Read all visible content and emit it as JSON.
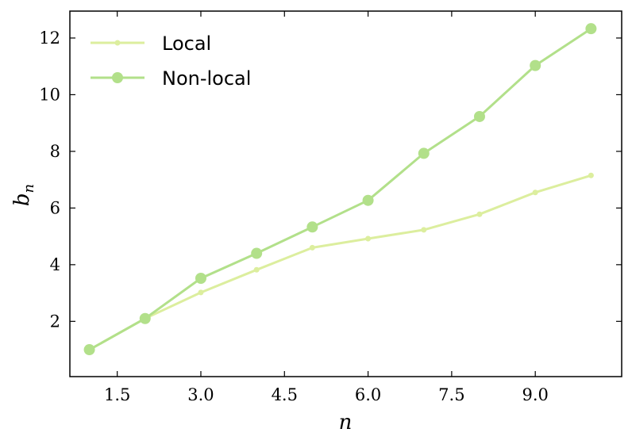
{
  "chart_data": {
    "type": "line",
    "xlabel": "n",
    "ylabel": "b",
    "ylabel_sub": "n",
    "xlim": [
      0.65,
      10.55
    ],
    "ylim": [
      0.05,
      12.95
    ],
    "xticks": [
      1.5,
      3.0,
      4.5,
      6.0,
      7.5,
      9.0
    ],
    "xtick_labels": [
      "1.5",
      "3.0",
      "4.5",
      "6.0",
      "7.5",
      "9.0"
    ],
    "yticks": [
      2,
      4,
      6,
      8,
      10,
      12
    ],
    "ytick_labels": [
      "2",
      "4",
      "6",
      "8",
      "10",
      "12"
    ],
    "grid": false,
    "legend_position": "top-left",
    "x": [
      1,
      2,
      3,
      4,
      5,
      6,
      7,
      8,
      9,
      10
    ],
    "series": [
      {
        "name": "Local",
        "color": "#dcee9e",
        "marker": "small-circle",
        "values": [
          1.0,
          2.1,
          3.02,
          3.82,
          4.6,
          4.92,
          5.23,
          5.78,
          6.55,
          7.15
        ]
      },
      {
        "name": "Non-local",
        "color": "#b2e08a",
        "marker": "large-circle",
        "values": [
          1.0,
          2.1,
          3.52,
          4.4,
          5.33,
          6.27,
          7.93,
          9.23,
          11.03,
          12.33
        ]
      }
    ]
  }
}
